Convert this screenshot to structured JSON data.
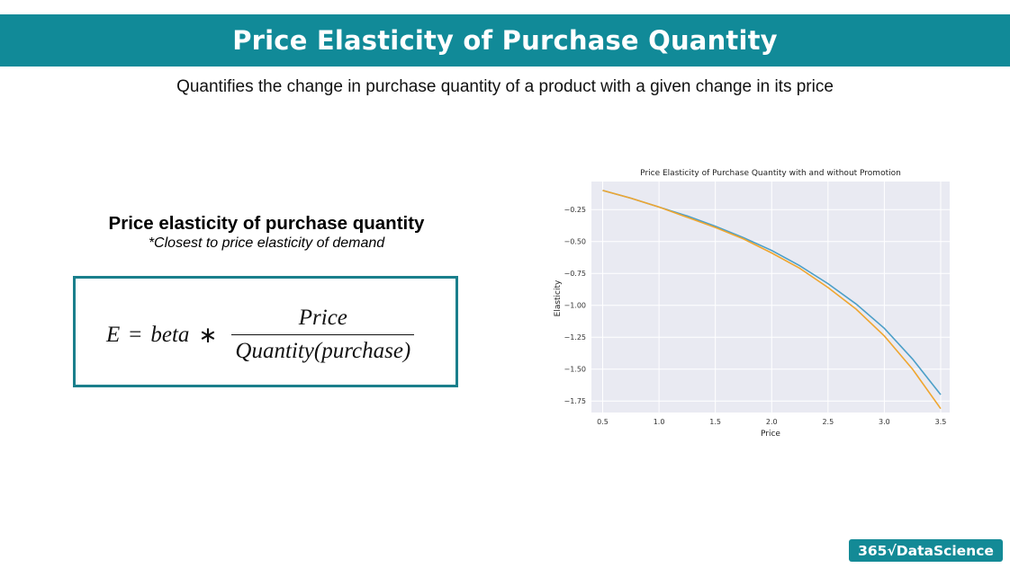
{
  "slide": {
    "title": "Price Elasticity of Purchase Quantity",
    "subtitle": "Quantifies the change in purchase quantity of a product with a given change in its price"
  },
  "definition": {
    "heading": "Price elasticity of purchase quantity",
    "note": "*Closest to price elasticity of demand"
  },
  "formula": {
    "lhs": "E",
    "equals": "=",
    "beta": "beta",
    "times": "∗",
    "numerator": "Price",
    "denominator": "Quantity(purchase)"
  },
  "brand": {
    "text": "365√DataScience",
    "color": "#138a96"
  },
  "colors": {
    "header": "#118a98",
    "box_border": "#1a7f8c",
    "plot_bg": "#e9eaf2",
    "series_1": "#4c9fc8",
    "series_2": "#efa630"
  },
  "chart_data": {
    "type": "line",
    "title": "Price Elasticity of Purchase Quantity with and without Promotion",
    "xlabel": "Price",
    "ylabel": "Elasticity",
    "xlim": [
      0.4,
      3.58
    ],
    "ylim": [
      -1.84,
      -0.03
    ],
    "xticks": [
      0.5,
      1.0,
      1.5,
      2.0,
      2.5,
      3.0,
      3.5
    ],
    "xtick_labels": [
      "0.5",
      "1.0",
      "1.5",
      "2.0",
      "2.5",
      "3.0",
      "3.5"
    ],
    "yticks": [
      -0.25,
      -0.5,
      -0.75,
      -1.0,
      -1.25,
      -1.5,
      -1.75
    ],
    "ytick_labels": [
      "−0.25",
      "−0.50",
      "−0.75",
      "−1.00",
      "−1.25",
      "−1.50",
      "−1.75"
    ],
    "grid": true,
    "x": [
      0.5,
      0.75,
      1.0,
      1.25,
      1.5,
      1.75,
      2.0,
      2.25,
      2.5,
      2.75,
      3.0,
      3.25,
      3.5
    ],
    "series": [
      {
        "values": [
          -0.1,
          -0.16,
          -0.23,
          -0.3,
          -0.38,
          -0.47,
          -0.57,
          -0.69,
          -0.83,
          -0.99,
          -1.18,
          -1.42,
          -1.7
        ]
      },
      {
        "values": [
          -0.1,
          -0.16,
          -0.23,
          -0.31,
          -0.39,
          -0.48,
          -0.59,
          -0.71,
          -0.86,
          -1.03,
          -1.24,
          -1.5,
          -1.81
        ]
      }
    ]
  }
}
